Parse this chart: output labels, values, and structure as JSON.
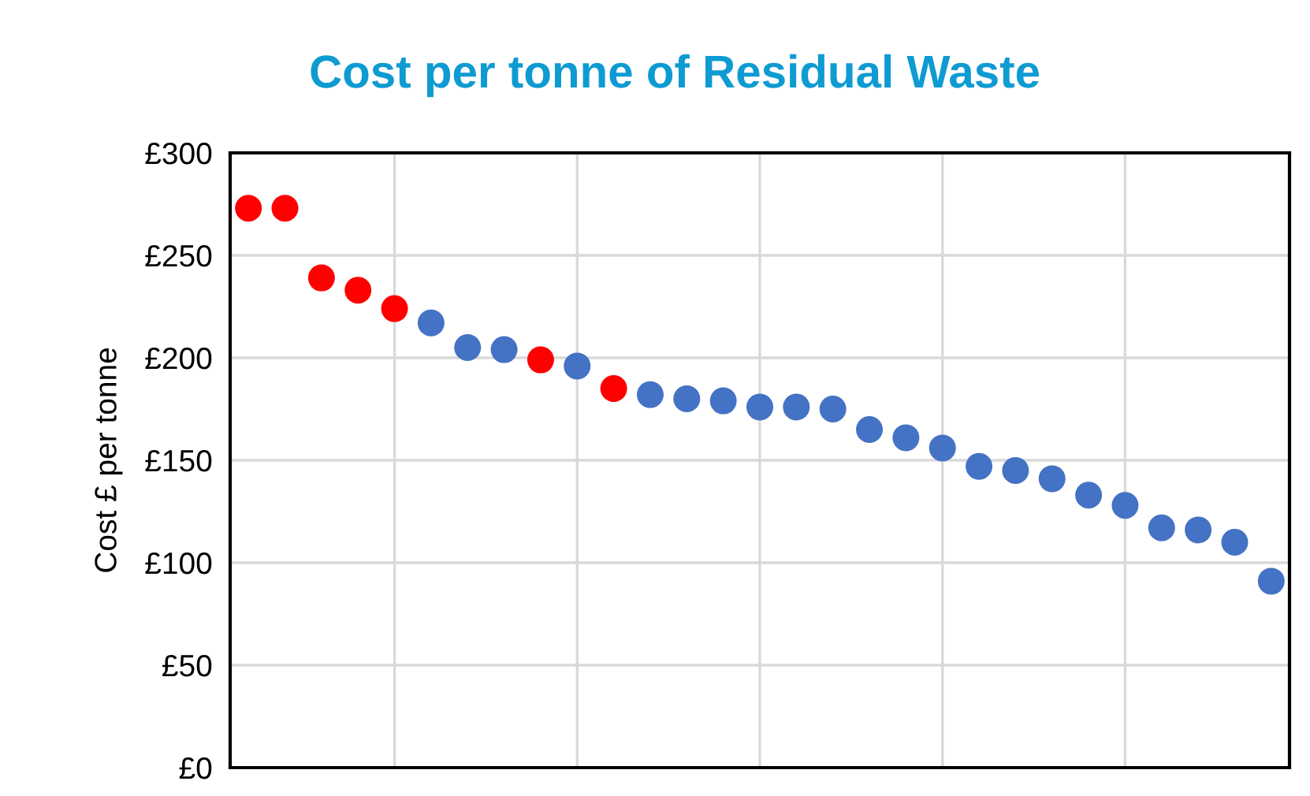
{
  "chart_data": {
    "type": "scatter",
    "title": "Cost per tonne of Residual Waste",
    "ylabel": "Cost £ per tonne",
    "categories": [
      null,
      null,
      null,
      null,
      null,
      null,
      null,
      null,
      null,
      null,
      null,
      null,
      null,
      null,
      null,
      null,
      null,
      null,
      null,
      null,
      null,
      null,
      null,
      null,
      null,
      null,
      null,
      null,
      null
    ],
    "values": [
      273,
      273,
      239,
      233,
      224,
      217,
      205,
      204,
      199,
      196,
      185,
      182,
      180,
      179,
      176,
      176,
      175,
      165,
      161,
      156,
      147,
      145,
      141,
      133,
      128,
      117,
      116,
      110,
      91
    ],
    "colors": [
      "#ff0000",
      "#ff0000",
      "#ff0000",
      "#ff0000",
      "#ff0000",
      "#4472c4",
      "#4472c4",
      "#4472c4",
      "#ff0000",
      "#4472c4",
      "#ff0000",
      "#4472c4",
      "#4472c4",
      "#4472c4",
      "#4472c4",
      "#4472c4",
      "#4472c4",
      "#4472c4",
      "#4472c4",
      "#4472c4",
      "#4472c4",
      "#4472c4",
      "#4472c4",
      "#4472c4",
      "#4472c4",
      "#4472c4",
      "#4472c4",
      "#4472c4",
      "#4472c4"
    ],
    "ylim": [
      0,
      300
    ],
    "yticks": [
      {
        "value": 0,
        "label": "£0"
      },
      {
        "value": 50,
        "label": "£50"
      },
      {
        "value": 100,
        "label": "£100"
      },
      {
        "value": 150,
        "label": "£150"
      },
      {
        "value": 200,
        "label": "£200"
      },
      {
        "value": 250,
        "label": "£250"
      },
      {
        "value": 300,
        "label": "£300"
      }
    ],
    "grid": true,
    "marker": "circle",
    "legend": false
  }
}
